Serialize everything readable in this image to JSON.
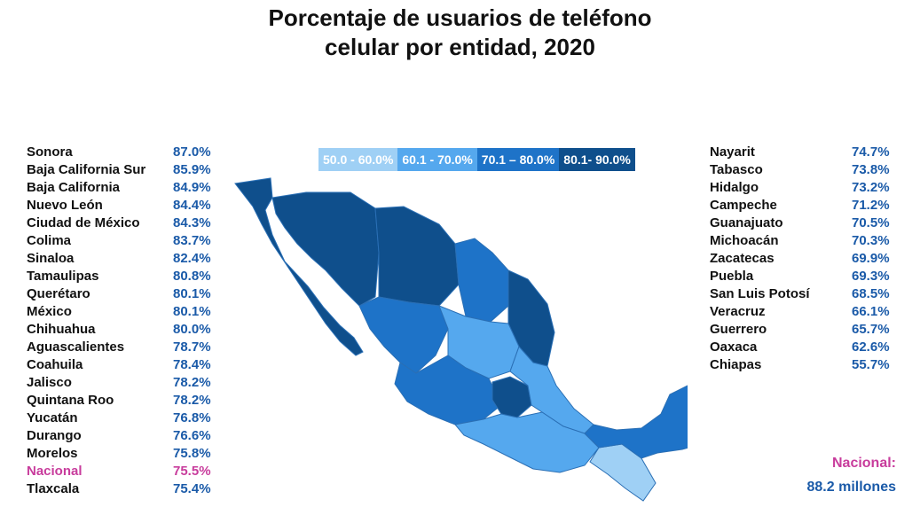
{
  "title": {
    "line1": "Porcentaje de usuarios de teléfono",
    "line2": "celular por entidad, 2020"
  },
  "legend": [
    {
      "label": "50.0 - 60.0%",
      "color": "#9fd0f5"
    },
    {
      "label": "60.1 - 70.0%",
      "color": "#55a8ee"
    },
    {
      "label": "70.1 – 80.0%",
      "color": "#1e73c8"
    },
    {
      "label": "80.1- 90.0%",
      "color": "#0f4f8c"
    }
  ],
  "left_list": [
    {
      "name": "Sonora",
      "value": "87.0%"
    },
    {
      "name": "Baja California Sur",
      "value": "85.9%"
    },
    {
      "name": "Baja California",
      "value": "84.9%"
    },
    {
      "name": "Nuevo León",
      "value": "84.4%"
    },
    {
      "name": "Ciudad de México",
      "value": "84.3%"
    },
    {
      "name": "Colima",
      "value": "83.7%"
    },
    {
      "name": "Sinaloa",
      "value": "82.4%"
    },
    {
      "name": "Tamaulipas",
      "value": "80.8%"
    },
    {
      "name": "Querétaro",
      "value": "80.1%"
    },
    {
      "name": "México",
      "value": "80.1%"
    },
    {
      "name": "Chihuahua",
      "value": "80.0%"
    },
    {
      "name": "Aguascalientes",
      "value": "78.7%"
    },
    {
      "name": "Coahuila",
      "value": "78.4%"
    },
    {
      "name": "Jalisco",
      "value": "78.2%"
    },
    {
      "name": "Quintana Roo",
      "value": "78.2%"
    },
    {
      "name": "Yucatán",
      "value": "76.8%"
    },
    {
      "name": "Durango",
      "value": "76.6%"
    },
    {
      "name": "Morelos",
      "value": "75.8%"
    },
    {
      "name": "Nacional",
      "value": "75.5%",
      "highlight": true
    },
    {
      "name": "Tlaxcala",
      "value": "75.4%"
    }
  ],
  "right_list": [
    {
      "name": "Nayarit",
      "value": "74.7%"
    },
    {
      "name": "Tabasco",
      "value": "73.8%"
    },
    {
      "name": "Hidalgo",
      "value": "73.2%"
    },
    {
      "name": "Campeche",
      "value": "71.2%"
    },
    {
      "name": "Guanajuato",
      "value": "70.5%"
    },
    {
      "name": "Michoacán",
      "value": "70.3%"
    },
    {
      "name": "Zacatecas",
      "value": "69.9%"
    },
    {
      "name": "Puebla",
      "value": "69.3%"
    },
    {
      "name": "San Luis Potosí",
      "value": "68.5%"
    },
    {
      "name": "Veracruz",
      "value": "66.1%"
    },
    {
      "name": "Guerrero",
      "value": "65.7%"
    },
    {
      "name": "Oaxaca",
      "value": "62.6%"
    },
    {
      "name": "Chiapas",
      "value": "55.7%"
    }
  ],
  "national": {
    "label": "Nacional:",
    "value": "88.2 millones"
  },
  "colors": {
    "highlight": "#c83c9c",
    "value_text": "#1a5aa8",
    "range_50_60": "#9fd0f5",
    "range_60_70": "#55a8ee",
    "range_70_80": "#1e73c8",
    "range_80_90": "#0f4f8c"
  }
}
